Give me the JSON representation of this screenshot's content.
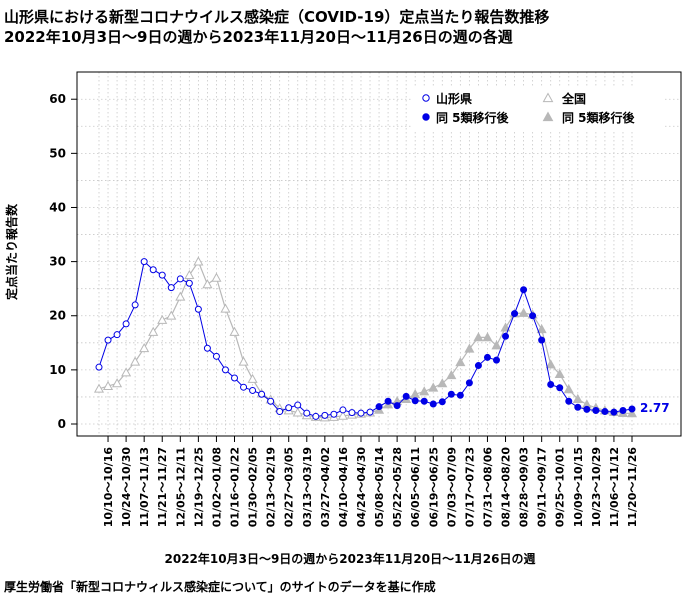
{
  "header": {
    "title_line1": "山形県における新型コロナウイルス感染症（COVID-19）定点当たり報告数推移",
    "title_line2": "2022年10月3日～9日の週から2023年11月20日～11月26日の週の各週"
  },
  "footer": {
    "xlabel": "2022年10月3日～9日の週から2023年11月20日～11月26日の週",
    "source": "厚生労働省「新型コロナウィルス感染症について」のサイトのデータを基に作成"
  },
  "colors": {
    "yamagata": "#0000e6",
    "national": "#b8b8b8",
    "grid": "#c8c8c8"
  },
  "chart_data": {
    "type": "line",
    "ylabel": "定点当たり報告数",
    "ylim": [
      0,
      65
    ],
    "yticks": [
      0,
      10,
      20,
      30,
      40,
      50,
      60
    ],
    "grid": true,
    "legend_position": "top-right",
    "x": [
      "10/03",
      "10/10",
      "10/17",
      "10/24",
      "10/31",
      "11/07",
      "11/14",
      "11/21",
      "11/28",
      "12/05",
      "12/12",
      "12/19",
      "12/26",
      "01/02",
      "01/09",
      "01/16",
      "01/23",
      "01/30",
      "02/06",
      "02/13",
      "02/20",
      "02/27",
      "03/06",
      "03/13",
      "03/20",
      "03/27",
      "04/03",
      "04/10",
      "04/17",
      "04/24",
      "05/01",
      "05/08",
      "05/15",
      "05/22",
      "05/29",
      "06/05",
      "06/12",
      "06/19",
      "06/26",
      "07/03",
      "07/10",
      "07/17",
      "07/24",
      "07/31",
      "08/07",
      "08/14",
      "08/21",
      "08/28",
      "09/04",
      "09/11",
      "09/18",
      "09/25",
      "10/02",
      "10/09",
      "10/16",
      "10/23",
      "10/30",
      "11/06",
      "11/13",
      "11/20"
    ],
    "x_tick_labels": [
      "10/10～10/16",
      "10/24～10/30",
      "11/07～11/13",
      "11/21～11/27",
      "12/05～12/11",
      "12/19～12/25",
      "01/02～01/08",
      "01/16～01/22",
      "01/30～02/05",
      "02/13～02/19",
      "02/27～03/05",
      "03/13～03/19",
      "03/27～04/02",
      "04/10～04/16",
      "04/24～04/30",
      "05/08～05/14",
      "05/22～05/28",
      "06/05～06/11",
      "06/19～06/25",
      "07/03～07/09",
      "07/17～07/23",
      "07/31～08/06",
      "08/14～08/20",
      "08/28～09/03",
      "09/11～09/17",
      "09/25～10/01",
      "10/09～10/15",
      "10/23～10/29",
      "11/06～11/12",
      "11/20～11/26"
    ],
    "x_tick_indices": [
      1,
      3,
      5,
      7,
      9,
      11,
      13,
      15,
      17,
      19,
      21,
      23,
      25,
      27,
      29,
      31,
      33,
      35,
      37,
      39,
      41,
      43,
      45,
      47,
      49,
      51,
      53,
      55,
      57,
      59
    ],
    "category_shift_index": 31,
    "series": [
      {
        "name": "山形県",
        "after_name": "同 5類移行後",
        "values": [
          10.5,
          15.5,
          16.5,
          18.5,
          22,
          30,
          28.5,
          27.5,
          25.2,
          26.8,
          26,
          21.2,
          14,
          12.5,
          10,
          8.5,
          6.8,
          6.2,
          5.5,
          4.2,
          2.3,
          3,
          3.5,
          2,
          1.4,
          1.6,
          1.8,
          2.6,
          2.1,
          2,
          2.2,
          3.2,
          4.2,
          3.4,
          5.1,
          4.3,
          4.2,
          3.7,
          4.1,
          5.5,
          5.3,
          7.6,
          10.8,
          12.3,
          11.8,
          16.2,
          20.4,
          24.8,
          20,
          15.5,
          7.3,
          6.7,
          4.2,
          3.1,
          2.7,
          2.5,
          2.3,
          2.2,
          2.5,
          2.77
        ]
      },
      {
        "name": "全国",
        "after_name": "同 5類移行後",
        "values": [
          6.5,
          7,
          7.5,
          9.5,
          11.5,
          14,
          17,
          19.2,
          20,
          23.5,
          27.5,
          30,
          25.8,
          27,
          21.3,
          17,
          11.5,
          8.3,
          5.6,
          4.5,
          2.9,
          2.5,
          2.1,
          1.6,
          1.3,
          1.2,
          1.3,
          1.5,
          1.7,
          1.9,
          2.1,
          2.6,
          3.6,
          4.2,
          4.6,
          5.5,
          6,
          6.7,
          7.5,
          9,
          11.4,
          13.9,
          16,
          16,
          14.5,
          17.8,
          20.4,
          20.5,
          20.2,
          17.5,
          11,
          9.2,
          6.4,
          4.6,
          3.6,
          3,
          2.5,
          2.2,
          2,
          1.95
        ]
      }
    ],
    "annotation": "2.77"
  }
}
